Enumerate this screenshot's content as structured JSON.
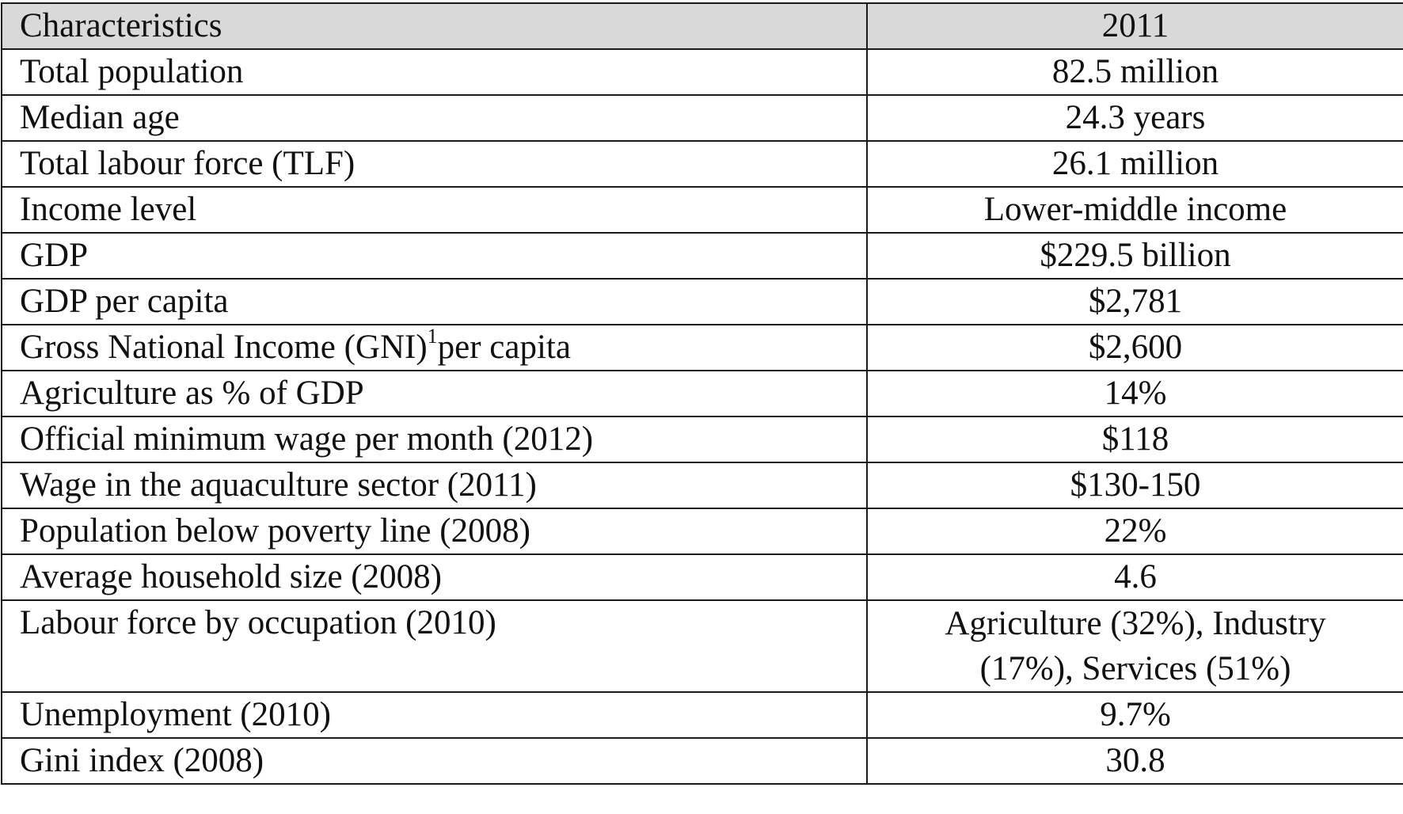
{
  "table": {
    "header": {
      "characteristic": "Characteristics",
      "year": "2011"
    },
    "rows": [
      {
        "label": "Total population",
        "value": "82.5 million"
      },
      {
        "label": "Median age",
        "value": "24.3 years"
      },
      {
        "label": "Total labour force (TLF)",
        "value": "26.1 million"
      },
      {
        "label": "Income level",
        "value": "Lower-middle income"
      },
      {
        "label": "GDP",
        "value": "$229.5 billion"
      },
      {
        "label": "GDP per capita",
        "value": "$2,781"
      },
      {
        "label": "Gross National Income (GNI)",
        "label_sup": "1",
        "label_suffix": "per capita",
        "value": "$2,600"
      },
      {
        "label": "Agriculture as % of GDP",
        "value": "14%"
      },
      {
        "label": "Official minimum wage per month (2012)",
        "value": "$118"
      },
      {
        "label": "Wage in the aquaculture sector (2011)",
        "value": "$130-150"
      },
      {
        "label": "Population below poverty line (2008)",
        "value": "22%"
      },
      {
        "label": "Average household size (2008)",
        "value": "4.6"
      },
      {
        "label": "Labour force by occupation (2010)",
        "value": "Agriculture (32%), Industry (17%), Services (51%)"
      },
      {
        "label": "Unemployment (2010)",
        "value": "9.7%"
      },
      {
        "label": "Gini index (2008)",
        "value": "30.8"
      }
    ]
  }
}
